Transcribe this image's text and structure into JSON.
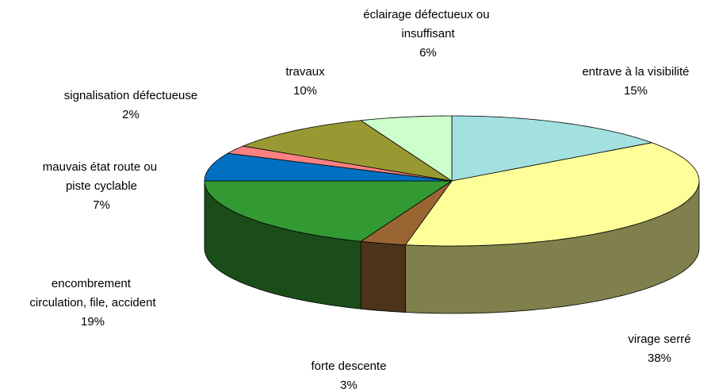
{
  "chart_data": {
    "type": "pie3d",
    "categories": [
      "entrave à la visibilité",
      "virage serré",
      "forte descente",
      "encombrement circulation, file, accident",
      "mauvais état route ou piste cyclable",
      "signalisation défectueuse",
      "travaux",
      "éclairage défectueux ou insuffisant"
    ],
    "values": [
      15,
      38,
      3,
      19,
      7,
      2,
      10,
      6
    ],
    "value_labels": [
      "15%",
      "38%",
      "3%",
      "19%",
      "7%",
      "2%",
      "10%",
      "6%"
    ],
    "colors": [
      "#a3e0e0",
      "#ffff99",
      "#996633",
      "#339933",
      "#0070c0",
      "#ff8080",
      "#999933",
      "#ccffcc"
    ]
  }
}
